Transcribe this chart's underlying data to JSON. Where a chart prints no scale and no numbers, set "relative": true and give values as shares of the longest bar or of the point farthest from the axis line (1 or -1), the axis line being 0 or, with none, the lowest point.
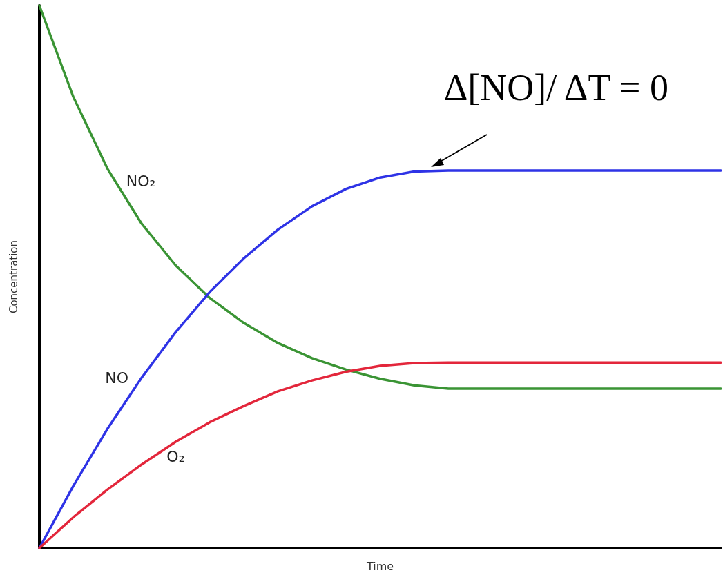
{
  "chart_data": {
    "type": "line",
    "xlabel": "Time",
    "ylabel": "Concentration",
    "relative": true,
    "marker": "none",
    "categories": [
      null,
      null,
      null,
      null,
      null,
      null,
      null,
      null,
      null,
      null,
      null,
      null,
      null,
      null,
      null,
      null,
      null,
      null,
      null,
      null,
      null
    ],
    "series": [
      {
        "name": "NO₂",
        "color": "#3a9434",
        "values": [
          1,
          0.831,
          0.699,
          0.598,
          0.521,
          0.461,
          0.415,
          0.378,
          0.35,
          0.329,
          0.312,
          0.3,
          0.294,
          0.294,
          0.294,
          0.294,
          0.294,
          0.294,
          0.294,
          0.294,
          0.294
        ]
      },
      {
        "name": "NO",
        "color": "#2e33e6",
        "values": [
          0,
          0.115,
          0.22,
          0.314,
          0.398,
          0.472,
          0.534,
          0.587,
          0.63,
          0.662,
          0.683,
          0.694,
          0.696,
          0.696,
          0.696,
          0.696,
          0.696,
          0.696,
          0.696,
          0.696,
          0.696
        ]
      },
      {
        "name": "O₂",
        "color": "#e3263b",
        "values": [
          0,
          0.057,
          0.108,
          0.154,
          0.196,
          0.232,
          0.262,
          0.289,
          0.309,
          0.325,
          0.336,
          0.341,
          0.342,
          0.342,
          0.342,
          0.342,
          0.342,
          0.342,
          0.342,
          0.342,
          0.342
        ]
      }
    ],
    "annotations": [
      "Δ[NO]/ ΔT = 0"
    ]
  }
}
